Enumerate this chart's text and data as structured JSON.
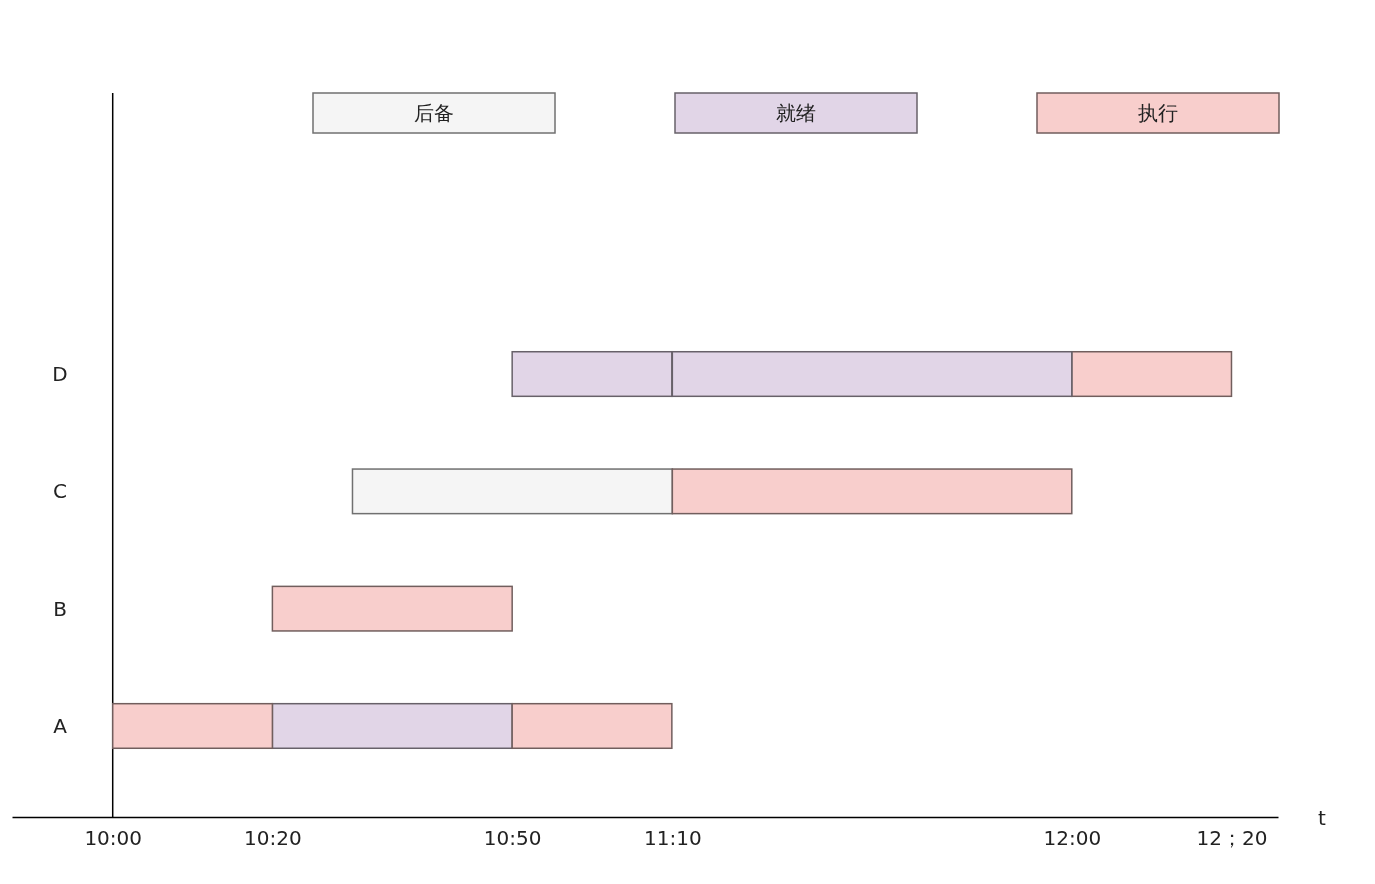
{
  "chart_data": {
    "type": "bar",
    "orientation": "horizontal",
    "xlabel": "t",
    "categories": [
      "D",
      "C",
      "B",
      "A"
    ],
    "series": [
      {
        "name": "后备",
        "color": "#f5f5f5",
        "values": [
          null,
          0.667,
          null,
          null
        ],
        "base": [
          null,
          10.5,
          null,
          null
        ]
      },
      {
        "name": "就绪",
        "color": "#e1d5e7",
        "values": [
          0.333,
          null,
          null,
          0.5
        ],
        "base": [
          10.833,
          null,
          null,
          10.333
        ]
      },
      {
        "name": "执行",
        "color": "#f8cecc",
        "values": [
          0.333,
          0.833,
          0.5,
          0.333
        ],
        "base": [
          12.0,
          11.167,
          10.333,
          10.0
        ]
      },
      {
        "color": "#e1d5e7",
        "values": [
          0.833,
          null,
          null,
          null
        ],
        "base": [
          11.167,
          null,
          null,
          null
        ]
      },
      {
        "color": "#f8cecc",
        "values": [
          null,
          null,
          null,
          0.333
        ],
        "base": [
          null,
          null,
          null,
          10.833
        ]
      }
    ],
    "xlim": [
      9.79,
      12.43
    ],
    "xticks": [
      {
        "value": 10,
        "label": "10:00"
      },
      {
        "value": 10.333,
        "label": "10:20"
      },
      {
        "value": 10.833,
        "label": "10:50"
      },
      {
        "value": 11.167,
        "label": "11:10"
      },
      {
        "value": 12,
        "label": "12:00"
      },
      {
        "value": 12.333,
        "label": "12；20"
      }
    ],
    "legend": "top"
  }
}
